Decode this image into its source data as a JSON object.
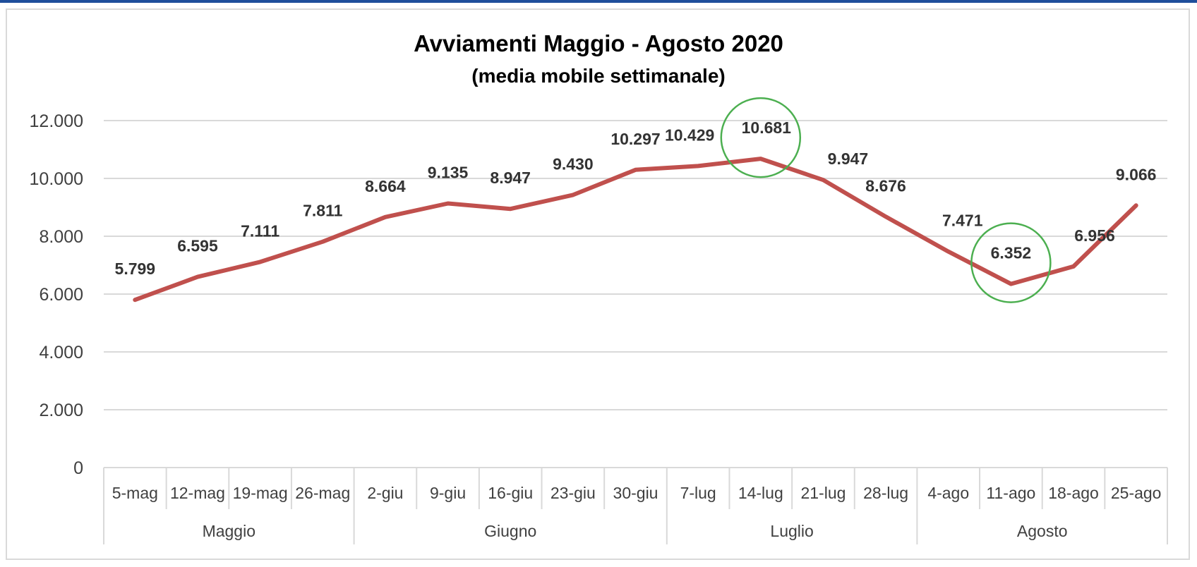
{
  "colors": {
    "top_strip": "#1f4e9b",
    "line": "#c0504d",
    "gridline": "#d9d9d9",
    "highlight_circle": "#4caf50",
    "axis_text": "#404040"
  },
  "chart_data": {
    "type": "line",
    "title": "Avviamenti Maggio - Agosto 2020",
    "subtitle": "(media mobile settimanale)",
    "xlabel": "",
    "ylabel": "",
    "ylim": [
      0,
      12000
    ],
    "yticks": [
      0,
      2000,
      4000,
      6000,
      8000,
      10000,
      12000
    ],
    "ytick_labels": [
      "0",
      "2.000",
      "4.000",
      "6.000",
      "8.000",
      "10.000",
      "12.000"
    ],
    "grid": true,
    "legend": "none",
    "categories": [
      "5-mag",
      "12-mag",
      "19-mag",
      "26-mag",
      "2-giu",
      "9-giu",
      "16-giu",
      "23-giu",
      "30-giu",
      "7-lug",
      "14-lug",
      "21-lug",
      "28-lug",
      "4-ago",
      "11-ago",
      "18-ago",
      "25-ago"
    ],
    "groups": [
      {
        "label": "Maggio",
        "start": 0,
        "count": 4
      },
      {
        "label": "Giugno",
        "start": 4,
        "count": 5
      },
      {
        "label": "Luglio",
        "start": 9,
        "count": 4
      },
      {
        "label": "Agosto",
        "start": 13,
        "count": 4
      }
    ],
    "series": [
      {
        "values": [
          5799,
          6595,
          7111,
          7811,
          8664,
          9135,
          8947,
          9430,
          10297,
          10429,
          10681,
          9947,
          8676,
          7471,
          6352,
          6956,
          9066
        ],
        "data_labels": [
          "5.799",
          "6.595",
          "7.111",
          "7.811",
          "8.664",
          "9.135",
          "8.947",
          "9.430",
          "10.297",
          "10.429",
          "10.681",
          "9.947",
          "8.676",
          "7.471",
          "6.352",
          "6.956",
          "9.066"
        ]
      }
    ],
    "highlighted_points": [
      "14-lug",
      "11-ago"
    ]
  }
}
